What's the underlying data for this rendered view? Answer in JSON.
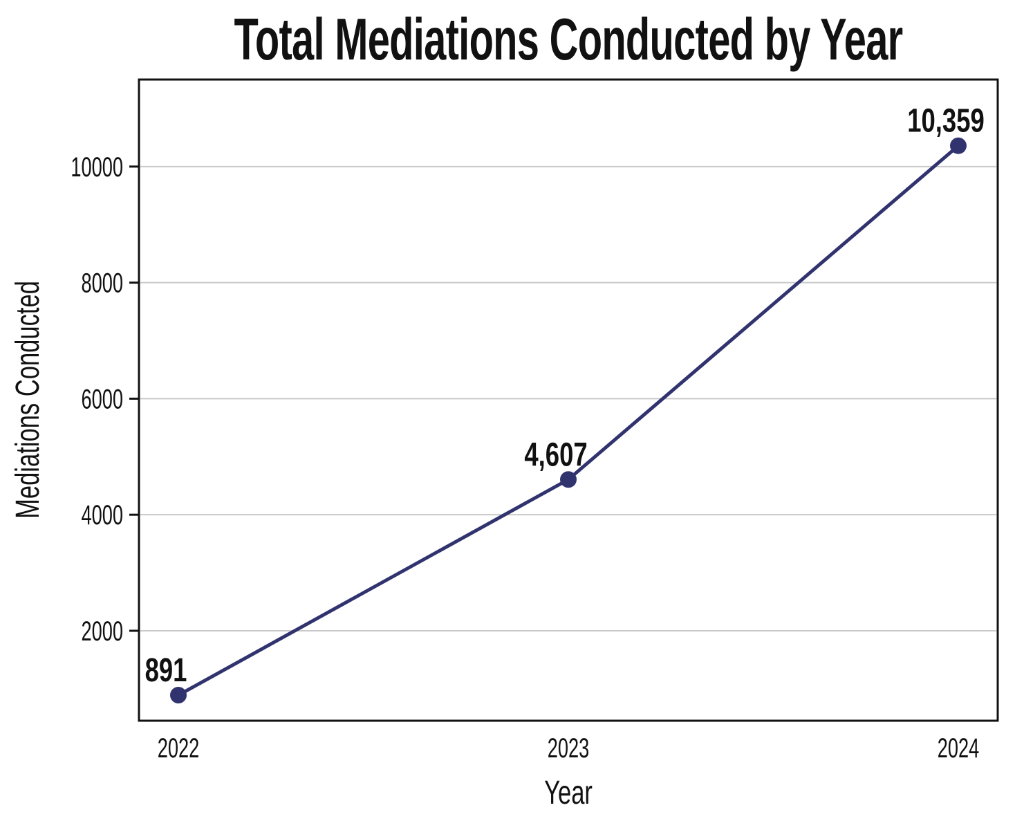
{
  "chart_data": {
    "type": "line",
    "title": "Total Mediations Conducted by Year",
    "xlabel": "Year",
    "ylabel": "Mediations Conducted",
    "categories": [
      "2022",
      "2023",
      "2024"
    ],
    "values": [
      891,
      4607,
      10359
    ],
    "point_labels": [
      "891",
      "4,607",
      "10,359"
    ],
    "yticks": [
      2000,
      4000,
      6000,
      8000,
      10000
    ],
    "ytick_labels": [
      "2000",
      "4000",
      "6000",
      "8000",
      "10000"
    ],
    "ylim": [
      450,
      11500
    ],
    "grid": "horizontal",
    "legend_position": "none",
    "marker": "circle",
    "colors": {
      "line": "#31336f",
      "marker": "#31336f",
      "grid": "#c9c9c9",
      "axis": "#111111",
      "text": "#111111",
      "background": "#ffffff"
    }
  }
}
